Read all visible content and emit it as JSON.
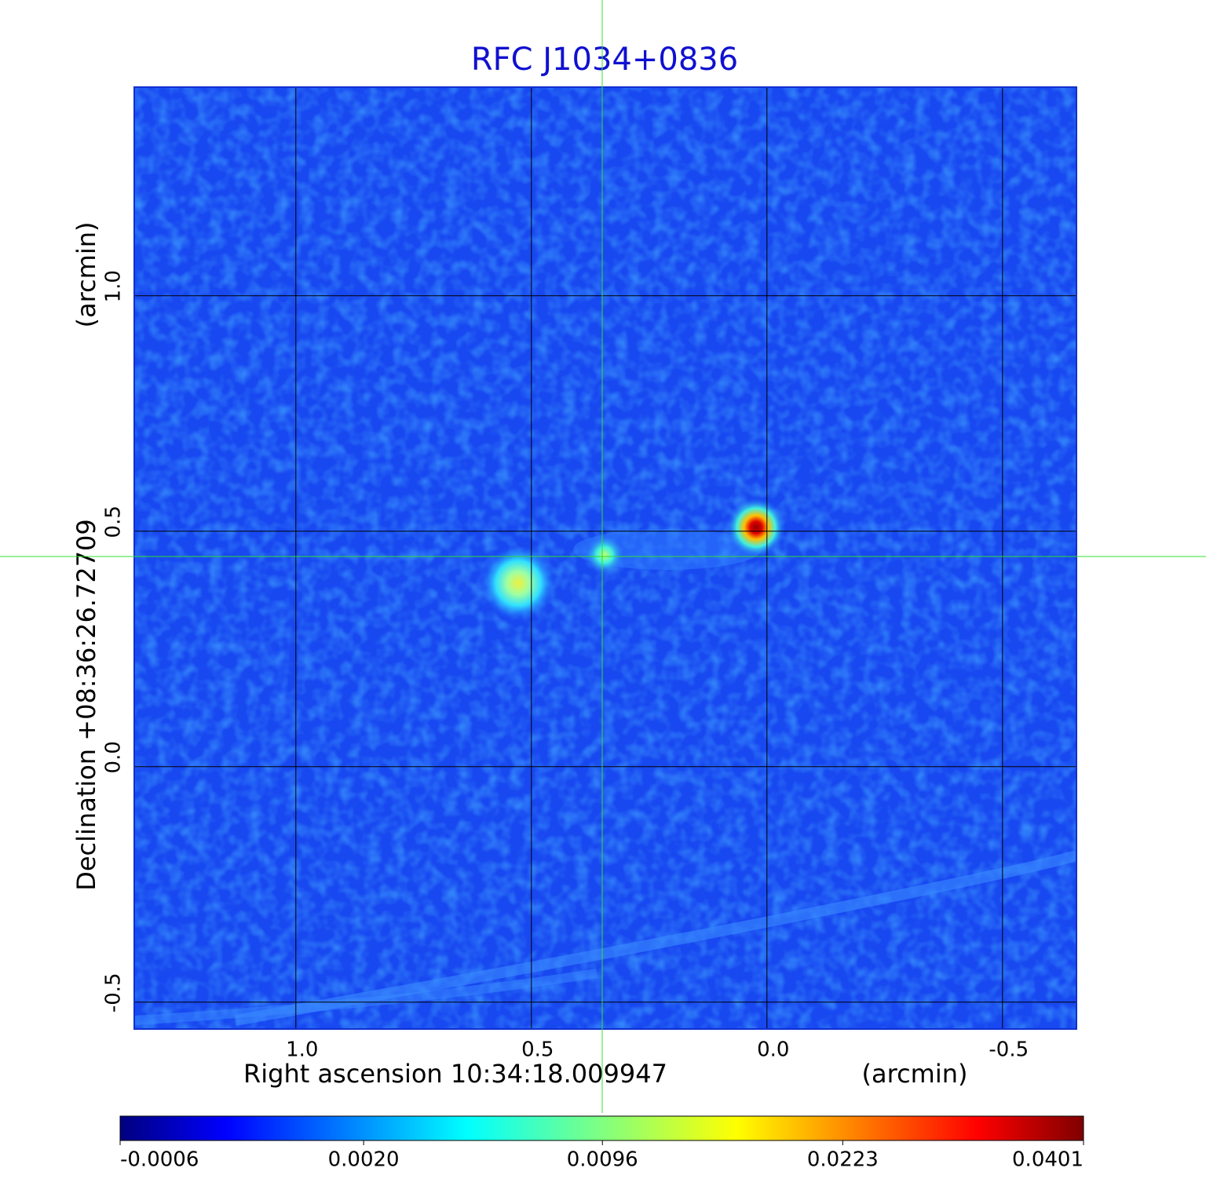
{
  "chart_data": {
    "type": "image",
    "title": "RFC J1034+0836",
    "xlabel": "Right ascension  10:34:18.009947",
    "xunit": "(arcmin)",
    "ylabel": "Declination  +08:36:26.72709",
    "yunit": "(arcmin)",
    "xlim": [
      1.343,
      -0.657
    ],
    "ylim": [
      -0.557,
      1.443
    ],
    "xticks": [
      {
        "value": 1,
        "label": "1.0"
      },
      0.5,
      {
        "value": 0,
        "label": "0.0"
      },
      -0.5
    ],
    "yticks": [
      -0.5,
      {
        "value": 0,
        "label": "0.0"
      },
      0.5,
      {
        "value": 1,
        "label": "1.0"
      }
    ],
    "grid": true,
    "colormap": "jet",
    "colorbar_stretch": "sqrt",
    "clim": [
      -0.0006,
      0.0401
    ],
    "colorbar_ticks": [
      -0.0006,
      {
        "value": 0.002,
        "label": "0.0020"
      },
      0.0096,
      0.0223,
      0.0401
    ]
  }
}
